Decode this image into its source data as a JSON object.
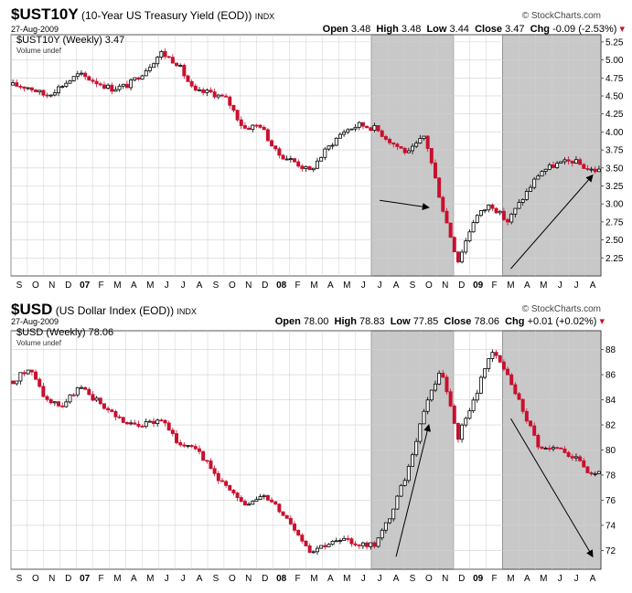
{
  "charts": [
    {
      "id": "top",
      "symbol": "$UST10Y",
      "name": "(10-Year US Treasury Yield (EOD))",
      "exchange": "INDX",
      "date": "27-Aug-2009",
      "legend_label": "$UST10Y (Weekly) 3.47",
      "legend_volume": "Volume undef",
      "ohlc": {
        "open_label": "Open",
        "open": "3.48",
        "high_label": "High",
        "high": "3.48",
        "low_label": "Low",
        "low": "3.44",
        "close_label": "Close",
        "close": "3.47",
        "chg_label": "Chg",
        "chg": "-0.09 (-2.53%)"
      },
      "logo": "© StockCharts.com",
      "y_ticks": [
        "5.25",
        "5.00",
        "4.75",
        "4.50",
        "4.25",
        "4.00",
        "3.75",
        "3.50",
        "3.25",
        "3.00",
        "2.75",
        "2.50",
        "2.25"
      ]
    },
    {
      "id": "bottom",
      "symbol": "$USD",
      "name": "(US Dollar Index (EOD))",
      "exchange": "INDX",
      "date": "27-Aug-2009",
      "legend_label": "$USD (Weekly) 78.06",
      "legend_volume": "Volume undef",
      "ohlc": {
        "open_label": "Open",
        "open": "78.00",
        "high_label": "High",
        "high": "78.83",
        "low_label": "Low",
        "low": "77.85",
        "close_label": "Close",
        "close": "78.06",
        "chg_label": "Chg",
        "chg": "+0.01 (+0.02%)"
      },
      "logo": "© StockCharts.com",
      "y_ticks": [
        "88",
        "86",
        "84",
        "82",
        "80",
        "78",
        "76",
        "74",
        "72"
      ]
    }
  ],
  "x_axis_labels": [
    "S",
    "O",
    "N",
    "D",
    "07",
    "F",
    "M",
    "A",
    "M",
    "J",
    "J",
    "A",
    "S",
    "O",
    "N",
    "D",
    "08",
    "F",
    "M",
    "A",
    "M",
    "J",
    "J",
    "A",
    "S",
    "O",
    "N",
    "D",
    "09",
    "F",
    "M",
    "A",
    "M",
    "J",
    "J",
    "A"
  ],
  "colors": {
    "up": "#000000",
    "down": "#c8102e",
    "shade": "#c8c8c8",
    "grid": "#d0d0d0",
    "frame": "#555555"
  },
  "chart_data": [
    {
      "type": "candlestick",
      "title": "$UST10Y (10-Year US Treasury Yield (EOD))",
      "frequency": "weekly",
      "ylim": [
        2.0,
        5.35
      ],
      "x": [
        "2006-09",
        "2006-10",
        "2006-11",
        "2006-12",
        "2007-01",
        "2007-02",
        "2007-03",
        "2007-04",
        "2007-05",
        "2007-06",
        "2007-07",
        "2007-08",
        "2007-09",
        "2007-10",
        "2007-11",
        "2007-12",
        "2008-01",
        "2008-02",
        "2008-03",
        "2008-04",
        "2008-05",
        "2008-06",
        "2008-07",
        "2008-08",
        "2008-09",
        "2008-10",
        "2008-11",
        "2008-12",
        "2009-01",
        "2009-02",
        "2009-03",
        "2009-04",
        "2009-05",
        "2009-06",
        "2009-07",
        "2009-08"
      ],
      "close_monthly": [
        4.65,
        4.62,
        4.5,
        4.65,
        4.8,
        4.7,
        4.6,
        4.65,
        4.85,
        5.1,
        4.95,
        4.55,
        4.55,
        4.45,
        4.05,
        4.1,
        3.7,
        3.6,
        3.45,
        3.75,
        4.0,
        4.1,
        4.05,
        3.85,
        3.7,
        3.95,
        3.0,
        2.2,
        2.8,
        3.0,
        2.75,
        3.1,
        3.45,
        3.55,
        3.6,
        3.47
      ],
      "shaded_periods": [
        [
          "2008-07",
          "2008-11"
        ],
        [
          "2009-03",
          "2009-08"
        ]
      ],
      "arrows": [
        {
          "from": [
            "2008-07",
            3.05
          ],
          "to": [
            "2008-10",
            2.95
          ]
        },
        {
          "from": [
            "2009-03",
            2.1
          ],
          "to": [
            "2009-08",
            3.4
          ]
        }
      ]
    },
    {
      "type": "candlestick",
      "title": "$USD (US Dollar Index (EOD))",
      "frequency": "weekly",
      "ylim": [
        70.5,
        89.5
      ],
      "x": [
        "2006-09",
        "2006-10",
        "2006-11",
        "2006-12",
        "2007-01",
        "2007-02",
        "2007-03",
        "2007-04",
        "2007-05",
        "2007-06",
        "2007-07",
        "2007-08",
        "2007-09",
        "2007-10",
        "2007-11",
        "2007-12",
        "2008-01",
        "2008-02",
        "2008-03",
        "2008-04",
        "2008-05",
        "2008-06",
        "2008-07",
        "2008-08",
        "2008-09",
        "2008-10",
        "2008-11",
        "2008-12",
        "2009-01",
        "2009-02",
        "2009-03",
        "2009-04",
        "2009-05",
        "2009-06",
        "2009-07",
        "2009-08"
      ],
      "close_monthly": [
        85.5,
        86.5,
        84.0,
        83.5,
        85.0,
        84.0,
        83.0,
        82.0,
        82.0,
        82.5,
        80.5,
        80.5,
        78.5,
        77.0,
        75.5,
        76.5,
        75.5,
        74.0,
        72.0,
        72.5,
        72.8,
        72.5,
        72.5,
        75.0,
        78.5,
        83.5,
        86.5,
        81.0,
        84.0,
        88.0,
        86.0,
        83.0,
        80.0,
        80.0,
        79.5,
        78.1
      ],
      "shaded_periods": [
        [
          "2008-07",
          "2008-11"
        ],
        [
          "2009-03",
          "2009-08"
        ]
      ],
      "arrows": [
        {
          "from": [
            "2008-08",
            71.5
          ],
          "to": [
            "2008-10",
            82.0
          ]
        },
        {
          "from": [
            "2009-03",
            82.5
          ],
          "to": [
            "2009-08",
            71.5
          ]
        }
      ]
    }
  ]
}
